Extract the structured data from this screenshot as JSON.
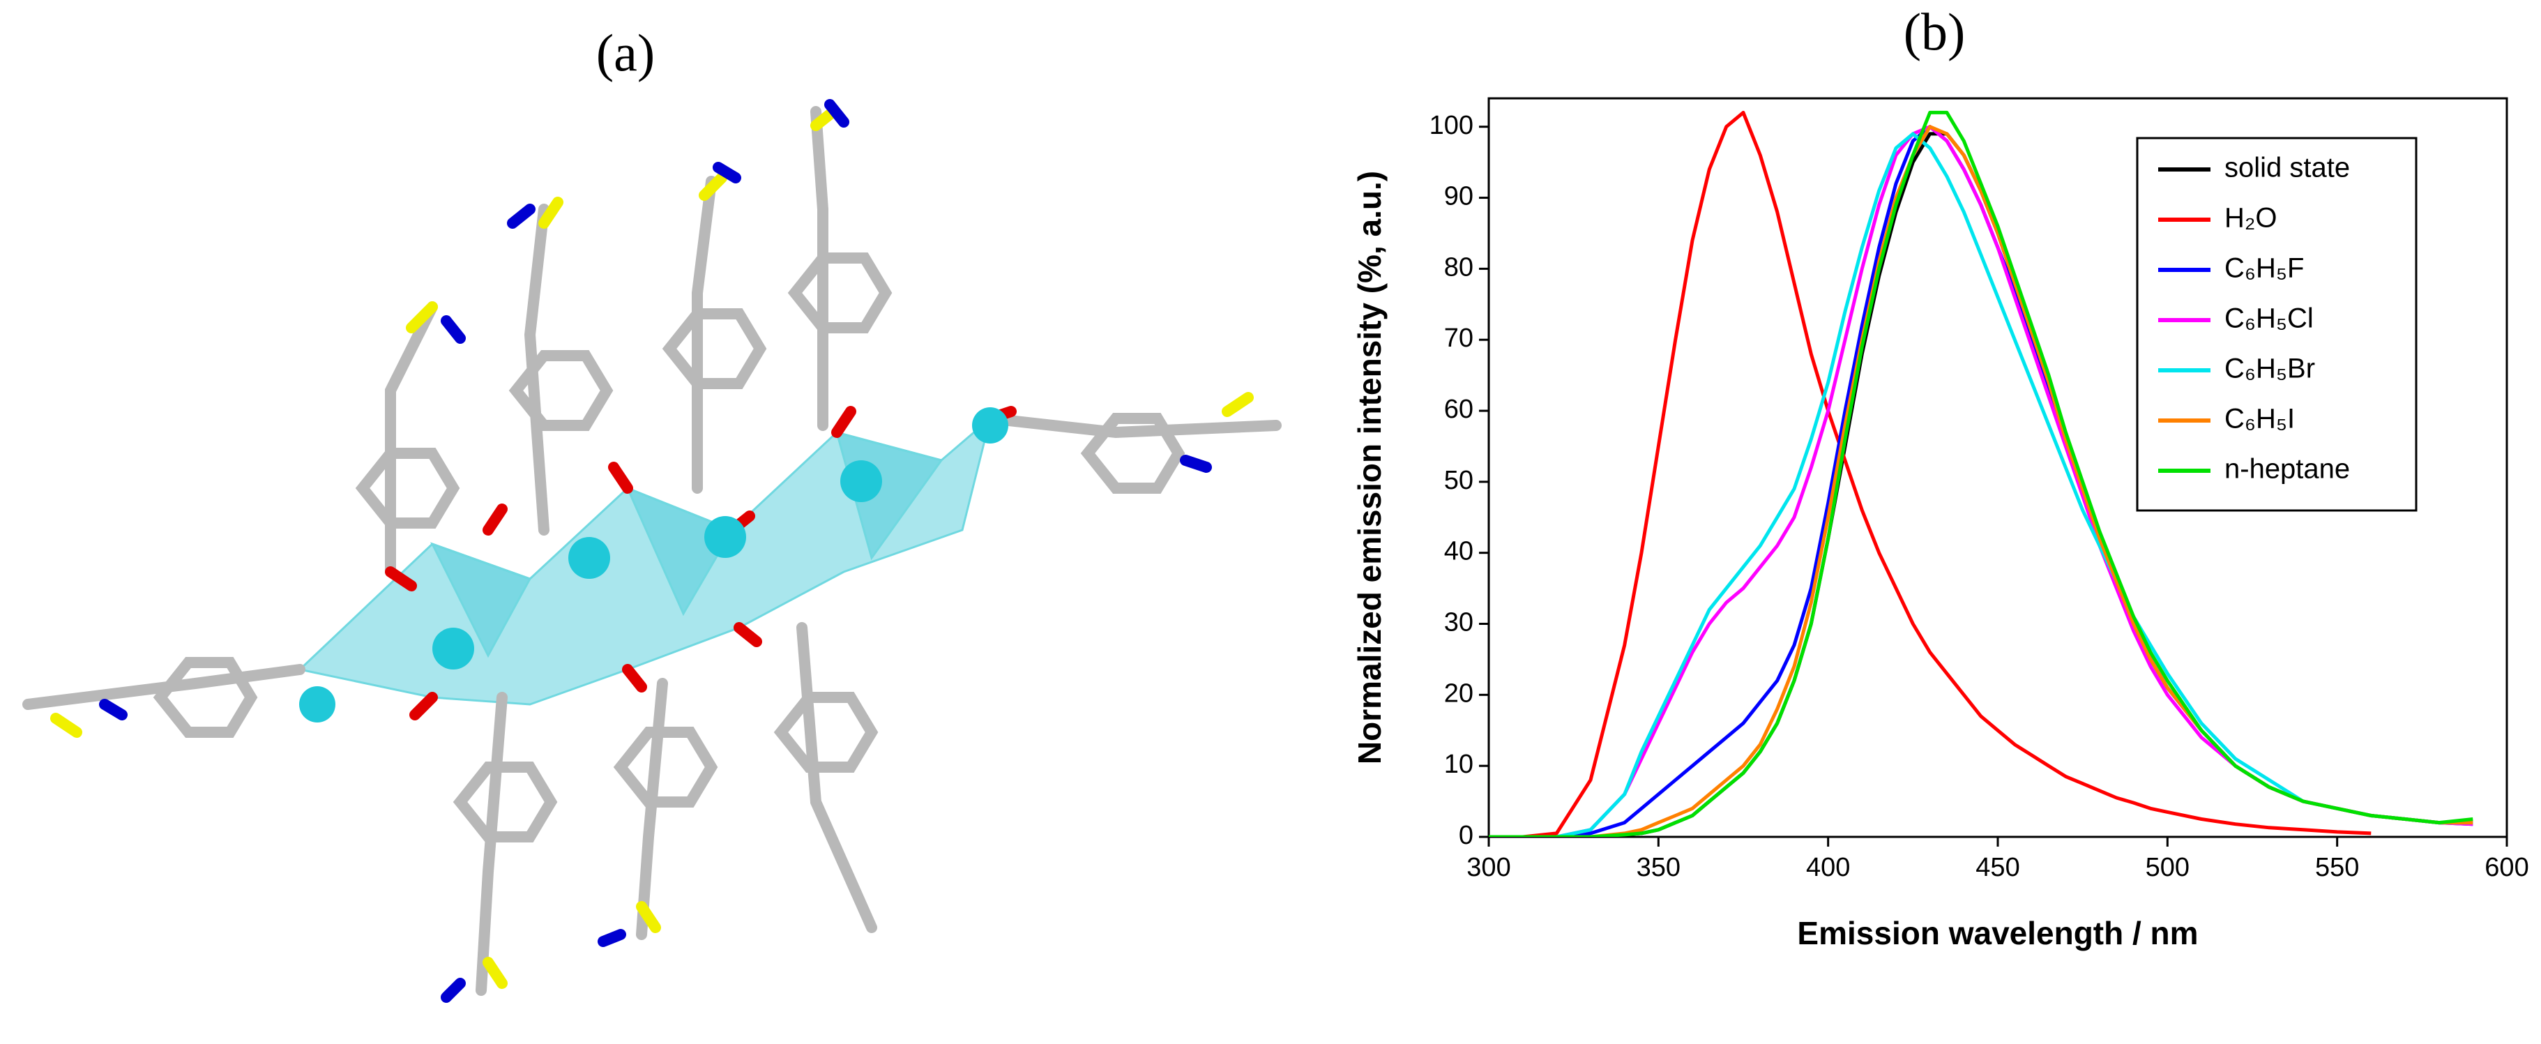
{
  "panel_labels": [
    "(a)",
    "(b)"
  ],
  "chart_data": {
    "type": "line",
    "x_label": "Emission wavelength / nm",
    "y_label": "Normalized emission intensity (%, a.u.)",
    "xlim": [
      300,
      600
    ],
    "ylim": [
      0,
      104
    ],
    "xticks": [
      300,
      350,
      400,
      450,
      500,
      550,
      600
    ],
    "yticks": [
      0,
      10,
      20,
      30,
      40,
      50,
      60,
      70,
      80,
      90,
      100
    ],
    "grid": false,
    "legend": "top-right",
    "x": [
      300,
      310,
      320,
      330,
      340,
      345,
      350,
      355,
      360,
      365,
      370,
      375,
      380,
      385,
      390,
      395,
      400,
      405,
      410,
      415,
      420,
      425,
      430,
      435,
      440,
      445,
      450,
      455,
      460,
      465,
      470,
      475,
      480,
      485,
      490,
      495,
      500,
      510,
      520,
      530,
      540,
      550,
      560,
      570,
      580,
      590
    ],
    "series": [
      {
        "name": "solid state",
        "color": "#000000",
        "values": [
          0,
          0,
          0,
          0,
          0.3,
          0.5,
          1,
          2,
          3,
          5,
          7,
          9,
          12,
          16,
          22,
          30,
          42,
          55,
          68,
          79,
          88,
          95,
          99,
          99,
          96,
          91,
          85,
          78,
          71,
          64,
          56,
          49,
          42,
          36,
          30,
          25,
          21,
          15,
          10,
          7,
          5,
          4,
          3,
          2.5,
          2,
          2
        ]
      },
      {
        "name": "H₂O",
        "color": "#ff0000",
        "values": [
          0,
          0,
          0.5,
          8,
          27,
          40,
          55,
          70,
          84,
          94,
          100,
          102,
          96,
          88,
          78,
          68,
          60,
          53,
          46,
          40,
          35,
          30,
          26,
          23,
          20,
          17,
          15,
          13,
          11.5,
          10,
          8.5,
          7.5,
          6.5,
          5.5,
          4.8,
          4,
          3.5,
          2.5,
          1.8,
          1.3,
          1,
          0.7,
          0.5,
          null,
          null,
          null
        ]
      },
      {
        "name": "C₆H₅F",
        "color": "#0000ff",
        "values": [
          0,
          0,
          0,
          0.5,
          2,
          4,
          6,
          8,
          10,
          12,
          14,
          16,
          19,
          22,
          27,
          35,
          47,
          60,
          72,
          83,
          92,
          98,
          100,
          98,
          94,
          89,
          83,
          77,
          70,
          63,
          56,
          49,
          42,
          36,
          30,
          25,
          21,
          15,
          10,
          7,
          5,
          4,
          3,
          2.5,
          2,
          1.8
        ]
      },
      {
        "name": "C₆H₅Cl",
        "color": "#ff00ff",
        "values": [
          0,
          0,
          0,
          1,
          6,
          11,
          16,
          21,
          26,
          30,
          33,
          35,
          38,
          41,
          45,
          52,
          60,
          70,
          80,
          89,
          96,
          99,
          100,
          98,
          94,
          89,
          83,
          76,
          69,
          62,
          55,
          48,
          41,
          35,
          29,
          24,
          20,
          14,
          10,
          7,
          5,
          4,
          3,
          2.5,
          2,
          1.8
        ]
      },
      {
        "name": "C₆H₅Br",
        "color": "#00e5ee",
        "values": [
          0,
          0,
          0,
          1,
          6,
          12,
          17,
          22,
          27,
          32,
          35,
          38,
          41,
          45,
          49,
          56,
          64,
          74,
          83,
          91,
          97,
          99,
          97,
          93,
          88,
          82,
          76,
          70,
          64,
          58,
          52,
          46,
          41,
          36,
          31,
          27,
          23,
          16,
          11,
          8,
          5,
          4,
          3,
          2.5,
          2,
          2
        ]
      },
      {
        "name": "C₆H₅I",
        "color": "#ff8000",
        "values": [
          0,
          0,
          0,
          0,
          0.5,
          1,
          2,
          3,
          4,
          6,
          8,
          10,
          13,
          18,
          24,
          33,
          45,
          58,
          70,
          81,
          90,
          96,
          100,
          99,
          96,
          91,
          85,
          78,
          71,
          64,
          56,
          49,
          42,
          36,
          30,
          25,
          21,
          15,
          10,
          7,
          5,
          4,
          3,
          2.5,
          2,
          2
        ]
      },
      {
        "name": "n-heptane",
        "color": "#00e000",
        "values": [
          0,
          0,
          0,
          0,
          0.3,
          0.5,
          1,
          2,
          3,
          5,
          7,
          9,
          12,
          16,
          22,
          30,
          42,
          56,
          69,
          80,
          89,
          96,
          102,
          102,
          98,
          92,
          86,
          79,
          72,
          65,
          57,
          50,
          43,
          37,
          31,
          26,
          22,
          15,
          10,
          7,
          5,
          4,
          3,
          2.5,
          2,
          2.5
        ]
      }
    ]
  }
}
